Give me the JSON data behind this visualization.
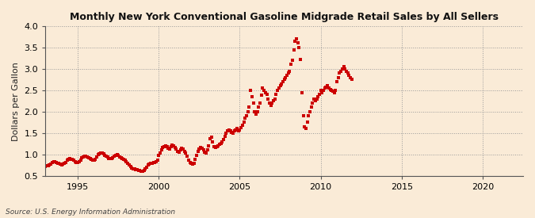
{
  "title": "Monthly New York Conventional Gasoline Midgrade Retail Sales by All Sellers",
  "ylabel": "Dollars per Gallon",
  "source": "Source: U.S. Energy Information Administration",
  "xlim": [
    1993.0,
    2022.5
  ],
  "ylim": [
    0.5,
    4.0
  ],
  "yticks": [
    0.5,
    1.0,
    1.5,
    2.0,
    2.5,
    3.0,
    3.5,
    4.0
  ],
  "xticks": [
    1995,
    2000,
    2005,
    2010,
    2015,
    2020
  ],
  "marker_color": "#cc0000",
  "bg_color": "#faebd7",
  "data": [
    [
      1993.0,
      0.73
    ],
    [
      1993.083,
      0.74
    ],
    [
      1993.167,
      0.75
    ],
    [
      1993.25,
      0.76
    ],
    [
      1993.333,
      0.78
    ],
    [
      1993.417,
      0.82
    ],
    [
      1993.5,
      0.85
    ],
    [
      1993.583,
      0.84
    ],
    [
      1993.667,
      0.83
    ],
    [
      1993.75,
      0.81
    ],
    [
      1993.833,
      0.8
    ],
    [
      1993.917,
      0.78
    ],
    [
      1994.0,
      0.77
    ],
    [
      1994.083,
      0.78
    ],
    [
      1994.167,
      0.8
    ],
    [
      1994.25,
      0.83
    ],
    [
      1994.333,
      0.87
    ],
    [
      1994.417,
      0.9
    ],
    [
      1994.5,
      0.91
    ],
    [
      1994.583,
      0.9
    ],
    [
      1994.667,
      0.89
    ],
    [
      1994.75,
      0.87
    ],
    [
      1994.833,
      0.85
    ],
    [
      1994.917,
      0.83
    ],
    [
      1995.0,
      0.82
    ],
    [
      1995.083,
      0.84
    ],
    [
      1995.167,
      0.88
    ],
    [
      1995.25,
      0.93
    ],
    [
      1995.333,
      0.96
    ],
    [
      1995.417,
      0.97
    ],
    [
      1995.5,
      0.97
    ],
    [
      1995.583,
      0.95
    ],
    [
      1995.667,
      0.93
    ],
    [
      1995.75,
      0.91
    ],
    [
      1995.833,
      0.89
    ],
    [
      1995.917,
      0.87
    ],
    [
      1996.0,
      0.88
    ],
    [
      1996.083,
      0.9
    ],
    [
      1996.167,
      0.95
    ],
    [
      1996.25,
      1.0
    ],
    [
      1996.333,
      1.03
    ],
    [
      1996.417,
      1.05
    ],
    [
      1996.5,
      1.04
    ],
    [
      1996.583,
      1.02
    ],
    [
      1996.667,
      0.99
    ],
    [
      1996.75,
      0.97
    ],
    [
      1996.833,
      0.95
    ],
    [
      1996.917,
      0.92
    ],
    [
      1997.0,
      0.91
    ],
    [
      1997.083,
      0.92
    ],
    [
      1997.167,
      0.94
    ],
    [
      1997.25,
      0.97
    ],
    [
      1997.333,
      0.99
    ],
    [
      1997.417,
      1.0
    ],
    [
      1997.5,
      0.98
    ],
    [
      1997.583,
      0.96
    ],
    [
      1997.667,
      0.94
    ],
    [
      1997.75,
      0.92
    ],
    [
      1997.833,
      0.9
    ],
    [
      1997.917,
      0.87
    ],
    [
      1998.0,
      0.84
    ],
    [
      1998.083,
      0.81
    ],
    [
      1998.167,
      0.77
    ],
    [
      1998.25,
      0.73
    ],
    [
      1998.333,
      0.7
    ],
    [
      1998.417,
      0.68
    ],
    [
      1998.5,
      0.67
    ],
    [
      1998.583,
      0.66
    ],
    [
      1998.667,
      0.65
    ],
    [
      1998.75,
      0.64
    ],
    [
      1998.833,
      0.63
    ],
    [
      1998.917,
      0.62
    ],
    [
      1999.0,
      0.61
    ],
    [
      1999.083,
      0.63
    ],
    [
      1999.167,
      0.67
    ],
    [
      1999.25,
      0.72
    ],
    [
      1999.333,
      0.76
    ],
    [
      1999.417,
      0.79
    ],
    [
      1999.5,
      0.8
    ],
    [
      1999.583,
      0.81
    ],
    [
      1999.667,
      0.82
    ],
    [
      1999.75,
      0.83
    ],
    [
      1999.833,
      0.85
    ],
    [
      1999.917,
      0.88
    ],
    [
      2000.0,
      0.98
    ],
    [
      2000.083,
      1.05
    ],
    [
      2000.167,
      1.12
    ],
    [
      2000.25,
      1.17
    ],
    [
      2000.333,
      1.19
    ],
    [
      2000.417,
      1.21
    ],
    [
      2000.5,
      1.19
    ],
    [
      2000.583,
      1.16
    ],
    [
      2000.667,
      1.13
    ],
    [
      2000.75,
      1.19
    ],
    [
      2000.833,
      1.23
    ],
    [
      2000.917,
      1.21
    ],
    [
      2001.0,
      1.17
    ],
    [
      2001.083,
      1.13
    ],
    [
      2001.167,
      1.09
    ],
    [
      2001.25,
      1.06
    ],
    [
      2001.333,
      1.11
    ],
    [
      2001.417,
      1.16
    ],
    [
      2001.5,
      1.13
    ],
    [
      2001.583,
      1.09
    ],
    [
      2001.667,
      1.04
    ],
    [
      2001.75,
      0.97
    ],
    [
      2001.833,
      0.88
    ],
    [
      2001.917,
      0.83
    ],
    [
      2002.0,
      0.8
    ],
    [
      2002.083,
      0.78
    ],
    [
      2002.167,
      0.81
    ],
    [
      2002.25,
      0.89
    ],
    [
      2002.333,
      0.99
    ],
    [
      2002.417,
      1.09
    ],
    [
      2002.5,
      1.14
    ],
    [
      2002.583,
      1.17
    ],
    [
      2002.667,
      1.15
    ],
    [
      2002.75,
      1.11
    ],
    [
      2002.833,
      1.07
    ],
    [
      2002.917,
      1.04
    ],
    [
      2003.0,
      1.12
    ],
    [
      2003.083,
      1.22
    ],
    [
      2003.167,
      1.37
    ],
    [
      2003.25,
      1.41
    ],
    [
      2003.333,
      1.31
    ],
    [
      2003.417,
      1.19
    ],
    [
      2003.5,
      1.17
    ],
    [
      2003.583,
      1.19
    ],
    [
      2003.667,
      1.21
    ],
    [
      2003.75,
      1.24
    ],
    [
      2003.833,
      1.27
    ],
    [
      2003.917,
      1.31
    ],
    [
      2004.0,
      1.36
    ],
    [
      2004.083,
      1.43
    ],
    [
      2004.167,
      1.51
    ],
    [
      2004.25,
      1.56
    ],
    [
      2004.333,
      1.59
    ],
    [
      2004.417,
      1.56
    ],
    [
      2004.5,
      1.53
    ],
    [
      2004.583,
      1.51
    ],
    [
      2004.667,
      1.56
    ],
    [
      2004.75,
      1.59
    ],
    [
      2004.833,
      1.61
    ],
    [
      2004.917,
      1.56
    ],
    [
      2005.0,
      1.59
    ],
    [
      2005.083,
      1.63
    ],
    [
      2005.167,
      1.69
    ],
    [
      2005.25,
      1.76
    ],
    [
      2005.333,
      1.86
    ],
    [
      2005.417,
      1.91
    ],
    [
      2005.5,
      2.01
    ],
    [
      2005.583,
      2.11
    ],
    [
      2005.667,
      2.5
    ],
    [
      2005.75,
      2.36
    ],
    [
      2005.833,
      2.21
    ],
    [
      2005.917,
      2.01
    ],
    [
      2006.0,
      1.96
    ],
    [
      2006.083,
      2.01
    ],
    [
      2006.167,
      2.11
    ],
    [
      2006.25,
      2.21
    ],
    [
      2006.333,
      2.39
    ],
    [
      2006.417,
      2.56
    ],
    [
      2006.5,
      2.51
    ],
    [
      2006.583,
      2.46
    ],
    [
      2006.667,
      2.41
    ],
    [
      2006.75,
      2.31
    ],
    [
      2006.833,
      2.21
    ],
    [
      2006.917,
      2.16
    ],
    [
      2007.0,
      2.21
    ],
    [
      2007.083,
      2.26
    ],
    [
      2007.167,
      2.31
    ],
    [
      2007.25,
      2.41
    ],
    [
      2007.333,
      2.51
    ],
    [
      2007.417,
      2.56
    ],
    [
      2007.5,
      2.61
    ],
    [
      2007.583,
      2.66
    ],
    [
      2007.667,
      2.71
    ],
    [
      2007.75,
      2.76
    ],
    [
      2007.833,
      2.81
    ],
    [
      2007.917,
      2.86
    ],
    [
      2008.0,
      2.91
    ],
    [
      2008.083,
      2.96
    ],
    [
      2008.167,
      3.11
    ],
    [
      2008.25,
      3.21
    ],
    [
      2008.333,
      3.46
    ],
    [
      2008.417,
      3.66
    ],
    [
      2008.5,
      3.71
    ],
    [
      2008.583,
      3.61
    ],
    [
      2008.667,
      3.51
    ],
    [
      2008.75,
      3.23
    ],
    [
      2008.833,
      2.46
    ],
    [
      2008.917,
      1.91
    ],
    [
      2009.0,
      1.66
    ],
    [
      2009.083,
      1.61
    ],
    [
      2009.167,
      1.76
    ],
    [
      2009.25,
      1.91
    ],
    [
      2009.333,
      2.01
    ],
    [
      2009.417,
      2.11
    ],
    [
      2009.5,
      2.21
    ],
    [
      2009.583,
      2.31
    ],
    [
      2009.667,
      2.26
    ],
    [
      2009.75,
      2.31
    ],
    [
      2009.833,
      2.36
    ],
    [
      2009.917,
      2.41
    ],
    [
      2010.0,
      2.51
    ],
    [
      2010.083,
      2.46
    ],
    [
      2010.167,
      2.51
    ],
    [
      2010.25,
      2.56
    ],
    [
      2010.333,
      2.59
    ],
    [
      2010.417,
      2.61
    ],
    [
      2010.5,
      2.56
    ],
    [
      2010.583,
      2.53
    ],
    [
      2010.667,
      2.51
    ],
    [
      2010.75,
      2.49
    ],
    [
      2010.833,
      2.46
    ],
    [
      2010.917,
      2.51
    ],
    [
      2011.0,
      2.71
    ],
    [
      2011.083,
      2.81
    ],
    [
      2011.167,
      2.91
    ],
    [
      2011.25,
      2.96
    ],
    [
      2011.333,
      3.01
    ],
    [
      2011.417,
      3.06
    ],
    [
      2011.5,
      3.01
    ],
    [
      2011.583,
      2.96
    ],
    [
      2011.667,
      2.91
    ],
    [
      2011.75,
      2.86
    ],
    [
      2011.833,
      2.81
    ],
    [
      2011.917,
      2.76
    ]
  ]
}
